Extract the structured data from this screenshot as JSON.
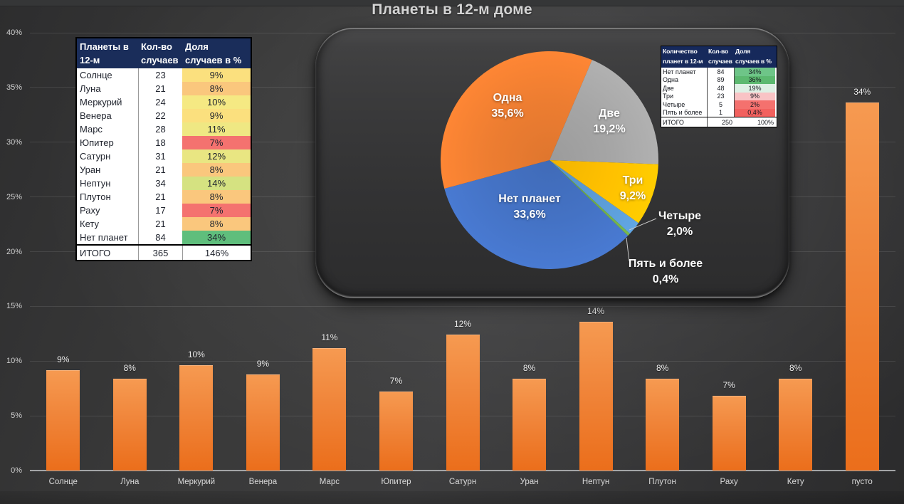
{
  "title": "Планеты в 12-м доме",
  "colors": {
    "background": "#333334",
    "bar_orange": "#ED7D31",
    "table_header_navy": "#1a2d5a",
    "axis_line": "#a3a5a7",
    "tick_text": "#cfcfcf",
    "pie_blue": "#4472C4",
    "pie_orange": "#ED7D31",
    "pie_gray": "#A5A5A5",
    "pie_gold": "#FFC000",
    "pie_lightblue": "#5B9BD5",
    "pie_green": "#70AD47"
  },
  "left_table": {
    "headers": [
      "Планеты в 12-м",
      "Кол-во случаев",
      "Доля случаев в %"
    ],
    "rows": [
      {
        "label": "Солнце",
        "count": "23",
        "share": "9%",
        "share_bg": "#FBE07E"
      },
      {
        "label": "Луна",
        "count": "21",
        "share": "8%",
        "share_bg": "#FAC77D"
      },
      {
        "label": "Меркурий",
        "count": "24",
        "share": "10%",
        "share_bg": "#F5E983"
      },
      {
        "label": "Венера",
        "count": "22",
        "share": "9%",
        "share_bg": "#FBE07E"
      },
      {
        "label": "Марс",
        "count": "28",
        "share": "11%",
        "share_bg": "#EFE883"
      },
      {
        "label": "Юпитер",
        "count": "18",
        "share": "7%",
        "share_bg": "#F4726F"
      },
      {
        "label": "Сатурн",
        "count": "31",
        "share": "12%",
        "share_bg": "#E9E682"
      },
      {
        "label": "Уран",
        "count": "21",
        "share": "8%",
        "share_bg": "#FAC77D"
      },
      {
        "label": "Нептун",
        "count": "34",
        "share": "14%",
        "share_bg": "#D5E281"
      },
      {
        "label": "Плутон",
        "count": "21",
        "share": "8%",
        "share_bg": "#FAC77D"
      },
      {
        "label": "Раху",
        "count": "17",
        "share": "7%",
        "share_bg": "#F4726F"
      },
      {
        "label": "Кету",
        "count": "21",
        "share": "8%",
        "share_bg": "#FAC77D"
      },
      {
        "label": "Нет планет",
        "count": "84",
        "share": "34%",
        "share_bg": "#5FBE7C"
      }
    ],
    "total": {
      "label": "ИТОГО",
      "count": "365",
      "share": "146%"
    }
  },
  "pie_table": {
    "headers": [
      "Количество планет в 12-м",
      "Кол-во случаев",
      "Доля случаев в %"
    ],
    "rows": [
      {
        "label": "Нет планет",
        "count": "84",
        "share": "34%",
        "share_bg": "#6EC588"
      },
      {
        "label": "Одна",
        "count": "89",
        "share": "36%",
        "share_bg": "#5CB970"
      },
      {
        "label": "Две",
        "count": "48",
        "share": "19%",
        "share_bg": "#DEF0E5"
      },
      {
        "label": "Три",
        "count": "23",
        "share": "9%",
        "share_bg": "#F9C3C5"
      },
      {
        "label": "Четыре",
        "count": "5",
        "share": "2%",
        "share_bg": "#F4716E"
      },
      {
        "label": "Пять и более",
        "count": "1",
        "share": "0,4%",
        "share_bg": "#F2615E"
      }
    ],
    "total": {
      "label": "ИТОГО",
      "count": "250",
      "share": "100%"
    }
  },
  "chart_data": [
    {
      "type": "bar",
      "title": "Планеты в 12-м доме",
      "categories": [
        "Солнце",
        "Луна",
        "Меркурий",
        "Венера",
        "Марс",
        "Юпитер",
        "Сатурн",
        "Уран",
        "Нептун",
        "Плутон",
        "Раху",
        "Кету",
        "пусто"
      ],
      "values": [
        9.2,
        8.4,
        9.6,
        8.8,
        11.2,
        7.2,
        12.4,
        8.4,
        13.6,
        8.4,
        6.8,
        8.4,
        33.6
      ],
      "labels": [
        "9%",
        "8%",
        "10%",
        "9%",
        "11%",
        "7%",
        "12%",
        "8%",
        "14%",
        "8%",
        "7%",
        "8%",
        "34%"
      ],
      "xlabel": "",
      "ylabel": "",
      "ylim": [
        0,
        40
      ],
      "y_ticks": [
        "0%",
        "5%",
        "10%",
        "15%",
        "20%",
        "25%",
        "30%",
        "35%",
        "40%"
      ],
      "grid": "horizontal",
      "legend": "none",
      "bar_color": "#ED7D31"
    },
    {
      "type": "pie",
      "start_angle_deg": 133.9,
      "slices": [
        {
          "name": "Нет планет",
          "pct": 33.6,
          "label_name": "Нет планет",
          "label_pct": "33,6%",
          "color": "#4472C4",
          "label": "inside"
        },
        {
          "name": "Одна",
          "pct": 35.6,
          "label_name": "Одна",
          "label_pct": "35,6%",
          "color": "#ED7D31",
          "label": "inside"
        },
        {
          "name": "Две",
          "pct": 19.2,
          "label_name": "Две",
          "label_pct": "19,2%",
          "color": "#A5A5A5",
          "label": "inside"
        },
        {
          "name": "Три",
          "pct": 9.2,
          "label_name": "Три",
          "label_pct": "9,2%",
          "color": "#FFC000",
          "label": "inside"
        },
        {
          "name": "Четыре",
          "pct": 2.0,
          "label_name": "Четыре",
          "label_pct": "2,0%",
          "color": "#5B9BD5",
          "label": "outside"
        },
        {
          "name": "Пять и более",
          "pct": 0.4,
          "label_name": "Пять и более",
          "label_pct": "0,4%",
          "color": "#70AD47",
          "label": "outside"
        }
      ]
    }
  ]
}
